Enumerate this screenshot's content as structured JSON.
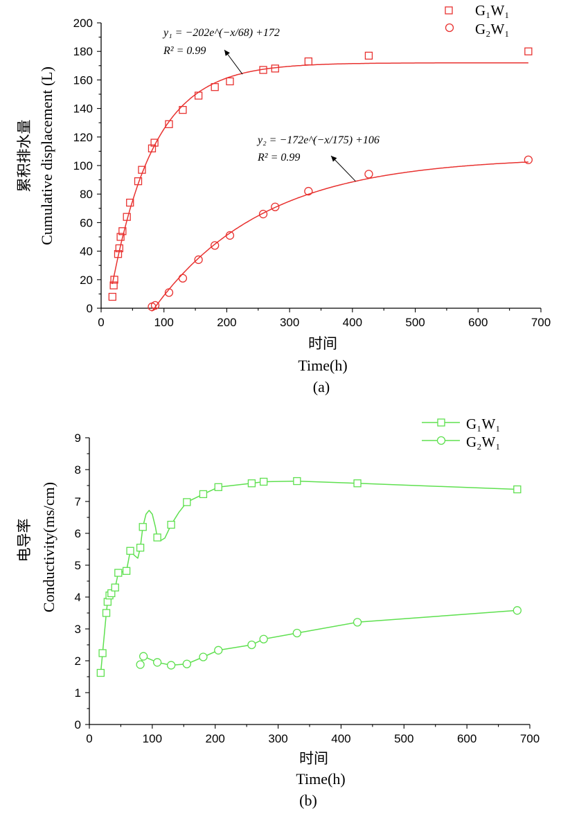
{
  "chart_data": [
    {
      "type": "scatter",
      "panel_label": "(a)",
      "xlabel_cn": "时间",
      "xlabel": "Time",
      "xlabel_unit": "(h)",
      "ylabel_cn": "累积排水量",
      "ylabel": "Cumulative displacement (L)",
      "xlim": [
        0,
        700
      ],
      "ylim": [
        0,
        200
      ],
      "xticks": [
        0,
        100,
        200,
        300,
        400,
        500,
        600,
        700
      ],
      "yticks": [
        0,
        20,
        40,
        60,
        80,
        100,
        120,
        140,
        160,
        180,
        200
      ],
      "legend_position": "top-right",
      "color": "#e8312f",
      "series": [
        {
          "name": "G₁W₁",
          "marker": "square",
          "x": [
            18,
            20,
            21,
            27,
            29,
            31,
            34,
            41,
            46,
            59,
            65,
            81,
            85,
            108,
            130,
            155,
            181,
            205,
            258,
            277,
            330,
            426,
            680
          ],
          "y": [
            8,
            16,
            20,
            38,
            42,
            50,
            54,
            64,
            74,
            89,
            97,
            112,
            116,
            129,
            139,
            149,
            155,
            159,
            167,
            168,
            173,
            177,
            180
          ],
          "fit": {
            "a": -202,
            "tau": 68,
            "c": 172,
            "x_start": 18,
            "x_end": 680
          }
        },
        {
          "name": "G₂W₁",
          "marker": "circle",
          "x": [
            81,
            86,
            108,
            130,
            155,
            181,
            205,
            258,
            277,
            330,
            426,
            680
          ],
          "y": [
            1,
            2,
            11,
            21,
            34,
            44,
            51,
            66,
            71,
            82,
            94,
            104
          ],
          "fit": {
            "a": -172,
            "tau": 175,
            "c": 106,
            "x_start": 80,
            "x_end": 680
          }
        }
      ],
      "annotations": [
        {
          "equation": "y₁ = −202e^(−x/68) +172",
          "r2": "R² = 0.99",
          "arrow_to": [
            225,
            164
          ]
        },
        {
          "equation": "y₂ = −172e^(−x/175) +106",
          "r2": "R² = 0.99",
          "arrow_to": [
            405,
            89
          ]
        }
      ]
    },
    {
      "type": "line",
      "panel_label": "(b)",
      "xlabel_cn": "时间",
      "xlabel": "Time",
      "xlabel_unit": "(h)",
      "ylabel_cn": "电导率",
      "ylabel": "Conductivity",
      "ylabel_unit": "(ms/cm)",
      "xlim": [
        0,
        700
      ],
      "ylim": [
        0,
        9
      ],
      "xticks": [
        0,
        100,
        200,
        300,
        400,
        500,
        600,
        700
      ],
      "yticks": [
        0,
        1,
        2,
        3,
        4,
        5,
        6,
        7,
        8,
        9
      ],
      "legend_position": "top-right",
      "color": "#5ee04f",
      "series": [
        {
          "name": "G₁W₁",
          "marker": "square",
          "x": [
            18,
            21,
            27,
            29,
            32,
            35,
            41,
            46,
            59,
            65,
            81,
            85,
            108,
            130,
            155,
            181,
            205,
            258,
            277,
            330,
            426,
            680
          ],
          "y": [
            1.62,
            2.24,
            3.5,
            3.85,
            4.05,
            4.12,
            4.3,
            4.76,
            4.82,
            5.45,
            5.55,
            6.2,
            5.87,
            6.27,
            6.98,
            7.23,
            7.45,
            7.57,
            7.62,
            7.64,
            7.57,
            7.38
          ],
          "curve_path": [
            [
              18,
              1.62
            ],
            [
              21,
              2.24
            ],
            [
              27,
              3.5
            ],
            [
              29,
              3.85
            ],
            [
              32,
              4.05
            ],
            [
              35,
              4.12
            ],
            [
              41,
              4.3
            ],
            [
              46,
              4.76
            ],
            [
              59,
              4.82
            ],
            [
              65,
              5.45
            ],
            [
              72,
              5.3
            ],
            [
              77,
              5.22
            ],
            [
              81,
              5.55
            ],
            [
              85,
              6.2
            ],
            [
              90,
              6.6
            ],
            [
              95,
              6.72
            ],
            [
              100,
              6.6
            ],
            [
              105,
              6.2
            ],
            [
              108,
              5.87
            ],
            [
              114,
              5.78
            ],
            [
              120,
              5.85
            ],
            [
              130,
              6.27
            ],
            [
              142,
              6.65
            ],
            [
              155,
              6.98
            ],
            [
              181,
              7.23
            ],
            [
              205,
              7.45
            ],
            [
              258,
              7.57
            ],
            [
              277,
              7.62
            ],
            [
              330,
              7.64
            ],
            [
              426,
              7.57
            ],
            [
              680,
              7.38
            ]
          ]
        },
        {
          "name": "G₂W₁",
          "marker": "circle",
          "x": [
            81,
            86,
            108,
            130,
            155,
            181,
            205,
            258,
            277,
            330,
            426,
            680
          ],
          "y": [
            1.88,
            2.14,
            1.95,
            1.86,
            1.9,
            2.12,
            2.33,
            2.5,
            2.68,
            2.87,
            3.21,
            3.58
          ]
        }
      ]
    }
  ]
}
